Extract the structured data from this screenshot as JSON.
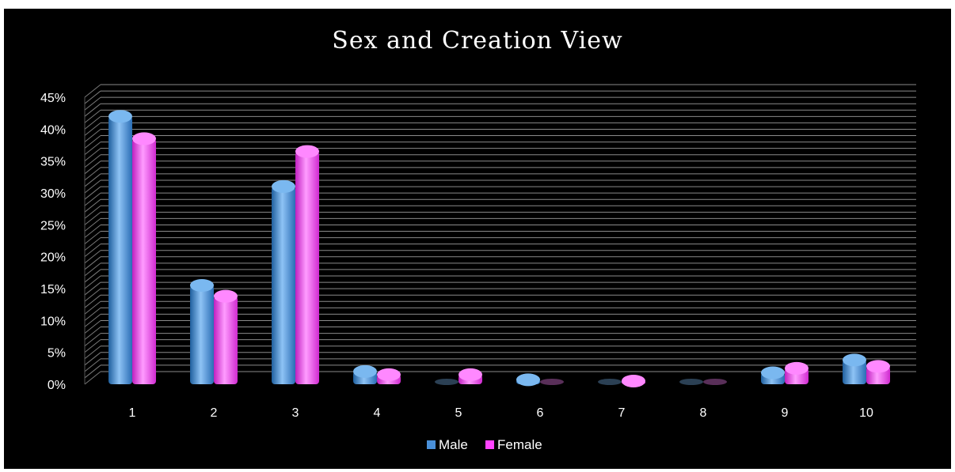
{
  "chart_data": {
    "type": "bar",
    "title": "Sex and Creation View",
    "xlabel": "",
    "ylabel": "",
    "categories": [
      "1",
      "2",
      "3",
      "4",
      "5",
      "6",
      "7",
      "8",
      "9",
      "10"
    ],
    "series": [
      {
        "name": "Male",
        "values": [
          0.42,
          0.155,
          0.31,
          0.02,
          0.0,
          0.007,
          0.0,
          0.0,
          0.018,
          0.038
        ]
      },
      {
        "name": "Female",
        "values": [
          0.385,
          0.138,
          0.365,
          0.015,
          0.015,
          0.0,
          0.005,
          0.0,
          0.025,
          0.028
        ]
      }
    ],
    "y_ticks": [
      "0%",
      "5%",
      "10%",
      "15%",
      "20%",
      "25%",
      "30%",
      "35%",
      "40%",
      "45%"
    ],
    "ylim": [
      0,
      0.45
    ],
    "grid": true,
    "legend_position": "bottom",
    "colors": {
      "Male": "#4a90d9",
      "Female": "#ff44ff",
      "background": "#000000",
      "grid": "#7f7f7f"
    }
  }
}
